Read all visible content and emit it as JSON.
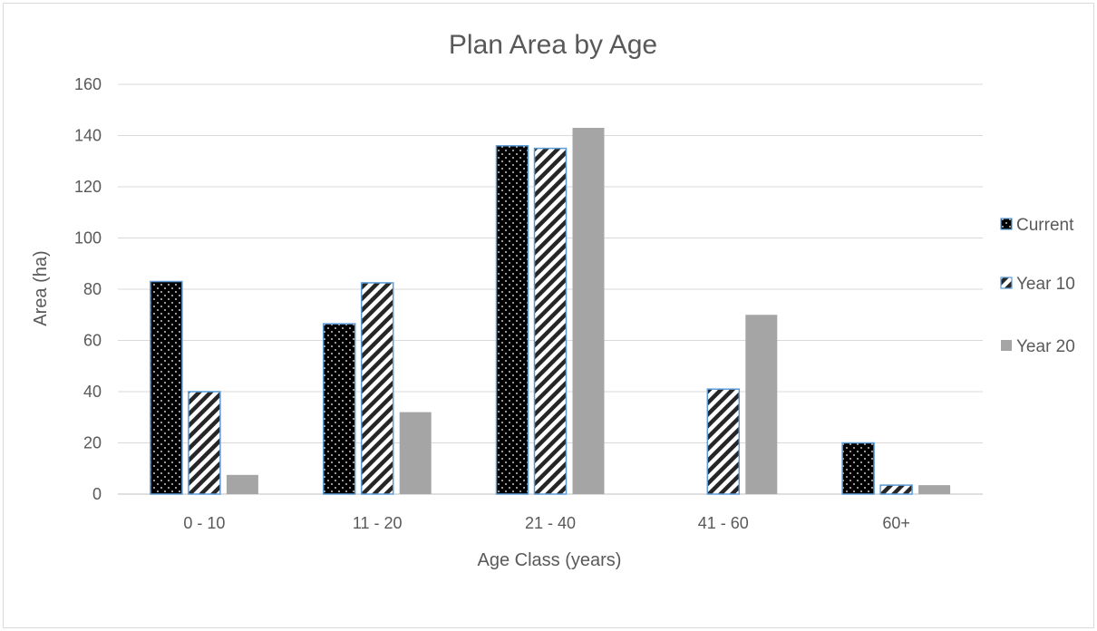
{
  "chart_data": {
    "type": "bar",
    "title": "Plan Area by Age",
    "xlabel": "Age Class (years)",
    "ylabel": "Area (ha)",
    "ylim": [
      0,
      160
    ],
    "yticks": [
      "0",
      "20",
      "40",
      "60",
      "80",
      "100",
      "120",
      "140",
      "160"
    ],
    "grid": true,
    "legend_position": "right",
    "categories": [
      "0 - 10",
      "11 - 20",
      "21 - 40",
      "41 - 60",
      "60+"
    ],
    "series": [
      {
        "name": "Current",
        "values": [
          83,
          66.5,
          136,
          0,
          20
        ],
        "pattern": "dots",
        "color": "#000000",
        "edge": "#5b9bd5"
      },
      {
        "name": "Year 10",
        "values": [
          40,
          82.5,
          135,
          41,
          3.5
        ],
        "pattern": "diagonal-stripes",
        "color": "#262626",
        "edge": "#5b9bd5"
      },
      {
        "name": "Year 20",
        "values": [
          7.5,
          32,
          143,
          70,
          3.5
        ],
        "pattern": "solid",
        "color": "#a5a5a5",
        "edge": "#a5a5a5"
      }
    ]
  }
}
